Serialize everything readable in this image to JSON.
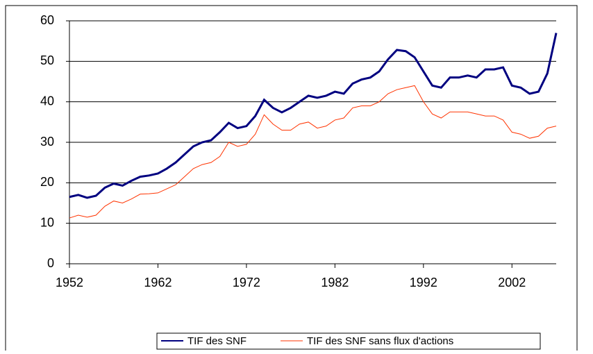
{
  "chart_data": {
    "type": "line",
    "x": [
      1952,
      1953,
      1954,
      1955,
      1956,
      1957,
      1958,
      1959,
      1960,
      1961,
      1962,
      1963,
      1964,
      1965,
      1966,
      1967,
      1968,
      1969,
      1970,
      1971,
      1972,
      1973,
      1974,
      1975,
      1976,
      1977,
      1978,
      1979,
      1980,
      1981,
      1982,
      1983,
      1984,
      1985,
      1986,
      1987,
      1988,
      1989,
      1990,
      1991,
      1992,
      1993,
      1994,
      1995,
      1996,
      1997,
      1998,
      1999,
      2000,
      2001,
      2002,
      2003,
      2004,
      2005,
      2006,
      2007
    ],
    "series": [
      {
        "name": "TIF des SNF",
        "color": "#000080",
        "values": [
          16.5,
          17,
          16.3,
          16.8,
          18.8,
          19.8,
          19.3,
          20.5,
          21.5,
          21.8,
          22.3,
          23.5,
          25,
          27,
          29,
          30,
          30.5,
          32.5,
          34.8,
          33.5,
          34,
          36.5,
          40.5,
          38.5,
          37.4,
          38.5,
          40,
          41.5,
          41,
          41.5,
          42.5,
          42,
          44.5,
          45.5,
          46,
          47.5,
          50.5,
          52.8,
          52.5,
          51,
          47.5,
          44,
          43.5,
          46,
          46,
          46.5,
          46,
          48,
          48,
          48.5,
          44,
          43.5,
          42,
          42.5,
          47,
          57
        ]
      },
      {
        "name": "TIF des SNF sans flux d'actions",
        "color": "#ff3300",
        "values": [
          11.3,
          12,
          11.5,
          12,
          14.2,
          15.5,
          15,
          16,
          17.2,
          17.3,
          17.5,
          18.5,
          19.5,
          21.5,
          23.5,
          24.5,
          25,
          26.5,
          30,
          29,
          29.5,
          32,
          36.8,
          34.5,
          33,
          33,
          34.5,
          35,
          33.5,
          34,
          35.5,
          36,
          38.5,
          39,
          39,
          40,
          42,
          43,
          43.5,
          44,
          40,
          37,
          36,
          37.5,
          37.5,
          37.5,
          37,
          36.5,
          36.5,
          35.5,
          32.5,
          32,
          31,
          31.5,
          33.5,
          34
        ]
      }
    ],
    "xlim": [
      1952,
      2007
    ],
    "xticks": [
      1952,
      1962,
      1972,
      1982,
      1992,
      2002
    ],
    "ylim": [
      0,
      60
    ],
    "yticks": [
      0,
      10,
      20,
      30,
      40,
      50,
      60
    ],
    "grid": true
  }
}
